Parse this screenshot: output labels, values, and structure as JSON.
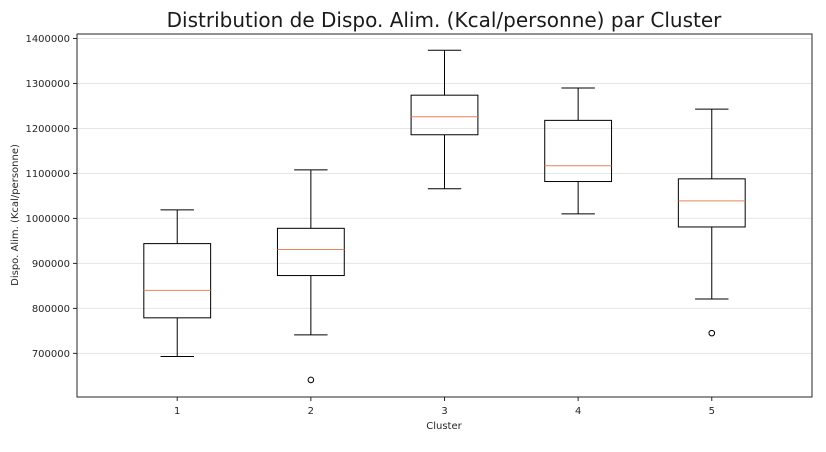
{
  "chart_data": {
    "type": "box",
    "title": "Distribution de Dispo. Alim. (Kcal/personne) par Cluster",
    "xlabel": "Cluster",
    "ylabel": "Dispo. Alim. (Kcal/personne)",
    "ylim": [
      603000,
      1410000
    ],
    "yticks": [
      700000,
      800000,
      900000,
      1000000,
      1100000,
      1200000,
      1300000,
      1400000
    ],
    "ytick_labels": [
      "700000",
      "800000",
      "900000",
      "1000000",
      "1100000",
      "1200000",
      "1300000",
      "1400000"
    ],
    "grid": "horizontal",
    "colors": {
      "box": "#000000",
      "median": "#e8845a",
      "grid": "#e6e6e6"
    },
    "categories": [
      "1",
      "2",
      "3",
      "4",
      "5"
    ],
    "boxes": [
      {
        "label": "1",
        "whisker_low": 693000,
        "q1": 779000,
        "median": 840000,
        "q3": 944000,
        "whisker_high": 1019000,
        "outliers": []
      },
      {
        "label": "2",
        "whisker_low": 741000,
        "q1": 873000,
        "median": 931000,
        "q3": 978000,
        "whisker_high": 1108000,
        "outliers": [
          641000
        ]
      },
      {
        "label": "3",
        "whisker_low": 1066000,
        "q1": 1186000,
        "median": 1226000,
        "q3": 1274000,
        "whisker_high": 1374000,
        "outliers": []
      },
      {
        "label": "4",
        "whisker_low": 1010000,
        "q1": 1082000,
        "median": 1117000,
        "q3": 1218000,
        "whisker_high": 1290000,
        "outliers": []
      },
      {
        "label": "5",
        "whisker_low": 821000,
        "q1": 981000,
        "median": 1039000,
        "q3": 1088000,
        "whisker_high": 1243000,
        "outliers": [
          745000
        ]
      }
    ]
  }
}
